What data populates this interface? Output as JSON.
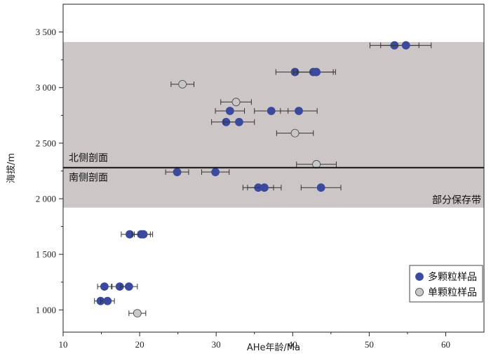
{
  "chart_data": {
    "type": "scatter",
    "xlabel": "AHe年龄/Ma",
    "ylabel": "海拔/m",
    "xlim": [
      10,
      65
    ],
    "ylim": [
      800,
      3750
    ],
    "x_ticks": [
      10,
      20,
      30,
      40,
      50,
      60
    ],
    "y_ticks": [
      1000,
      1500,
      2000,
      2500,
      3000,
      3500
    ],
    "y_tick_labels": [
      "1 000",
      "1 500",
      "2 000",
      "2 500",
      "3 000",
      "3 500"
    ],
    "grid": false,
    "legend_position": "bottom-right",
    "shaded_band": {
      "y_from": 1920,
      "y_to": 3410,
      "label": "部分保存带",
      "color": "#ccc6c6"
    },
    "divider": {
      "y": 2280,
      "label_above": "北侧剖面",
      "label_below": "南侧剖面"
    },
    "series": [
      {
        "name": "多颗粒样品",
        "color": "#3b4a9c",
        "points": [
          {
            "x": 53.3,
            "y": 3380,
            "err": 3.2
          },
          {
            "x": 54.8,
            "y": 3380,
            "err": 3.3
          },
          {
            "x": 40.3,
            "y": 3140,
            "err": 2.5
          },
          {
            "x": 42.7,
            "y": 3140,
            "err": 2.6
          },
          {
            "x": 43.1,
            "y": 3140,
            "err": 2.5
          },
          {
            "x": 31.8,
            "y": 2790,
            "err": 1.9
          },
          {
            "x": 37.2,
            "y": 2790,
            "err": 2.2
          },
          {
            "x": 40.8,
            "y": 2790,
            "err": 2.4
          },
          {
            "x": 31.3,
            "y": 2690,
            "err": 1.9
          },
          {
            "x": 33.0,
            "y": 2690,
            "err": 2.0
          },
          {
            "x": 24.9,
            "y": 2240,
            "err": 1.5
          },
          {
            "x": 29.9,
            "y": 2240,
            "err": 1.8
          },
          {
            "x": 35.5,
            "y": 2100,
            "err": 2.0
          },
          {
            "x": 36.3,
            "y": 2100,
            "err": 2.2
          },
          {
            "x": 43.7,
            "y": 2100,
            "err": 2.6
          },
          {
            "x": 18.7,
            "y": 1680,
            "err": 1.1
          },
          {
            "x": 20.2,
            "y": 1680,
            "err": 1.2
          },
          {
            "x": 20.5,
            "y": 1680,
            "err": 1.2
          },
          {
            "x": 15.4,
            "y": 1210,
            "err": 0.9
          },
          {
            "x": 17.4,
            "y": 1210,
            "err": 1.0
          },
          {
            "x": 18.6,
            "y": 1210,
            "err": 1.1
          },
          {
            "x": 14.9,
            "y": 1080,
            "err": 0.8
          },
          {
            "x": 15.8,
            "y": 1080,
            "err": 0.9
          }
        ]
      },
      {
        "name": "单颗粒样品",
        "color": "#c8c8c8",
        "points": [
          {
            "x": 25.6,
            "y": 3030,
            "err": 1.5
          },
          {
            "x": 32.6,
            "y": 2870,
            "err": 2.0
          },
          {
            "x": 40.3,
            "y": 2590,
            "err": 2.4
          },
          {
            "x": 43.1,
            "y": 2310,
            "err": 2.6
          },
          {
            "x": 19.7,
            "y": 970,
            "err": 1.1
          }
        ]
      }
    ]
  }
}
